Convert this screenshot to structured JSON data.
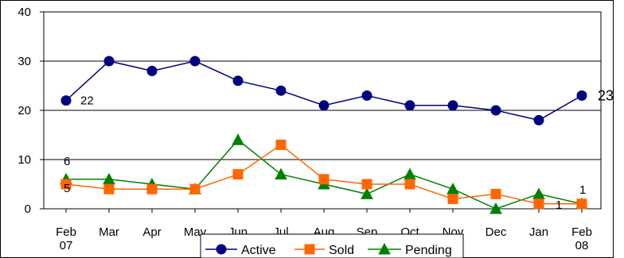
{
  "chart_data": {
    "type": "line",
    "title": "",
    "xlabel": "",
    "ylabel": "",
    "categories": [
      [
        "Feb",
        "07"
      ],
      [
        "Mar"
      ],
      [
        "Apr"
      ],
      [
        "May"
      ],
      [
        "Jun"
      ],
      [
        "Jul"
      ],
      [
        "Aug"
      ],
      [
        "Sep"
      ],
      [
        "Oct"
      ],
      [
        "Nov"
      ],
      [
        "Dec"
      ],
      [
        "Jan"
      ],
      [
        "Feb",
        "08"
      ]
    ],
    "ylim": [
      0,
      40
    ],
    "yticks": [
      0,
      10,
      20,
      30,
      40
    ],
    "grid": "horizontal",
    "legend_position": "bottom",
    "series": [
      {
        "name": "Active",
        "color": "#000080",
        "marker": "circle",
        "values": [
          22,
          30,
          28,
          30,
          26,
          24,
          21,
          23,
          21,
          21,
          20,
          18,
          23
        ]
      },
      {
        "name": "Sold",
        "color": "#FF6600",
        "marker": "square",
        "values": [
          5,
          4,
          4,
          4,
          7,
          13,
          6,
          5,
          5,
          2,
          3,
          1,
          1
        ]
      },
      {
        "name": "Pending",
        "color": "#008000",
        "marker": "triangle",
        "values": [
          6,
          6,
          5,
          4,
          14,
          7,
          5,
          3,
          7,
          4,
          0,
          3,
          1
        ]
      }
    ],
    "annotations": [
      {
        "text": "22",
        "series": "Active",
        "index": 0
      },
      {
        "text": "23",
        "series": "Active",
        "index": 12
      },
      {
        "text": "6",
        "series": "Pending",
        "index": 0
      },
      {
        "text": "5",
        "series": "Sold",
        "index": 0
      },
      {
        "text": "1",
        "series": "Pending",
        "index": 12
      },
      {
        "text": "1",
        "series": "Sold",
        "index": 12
      }
    ]
  }
}
